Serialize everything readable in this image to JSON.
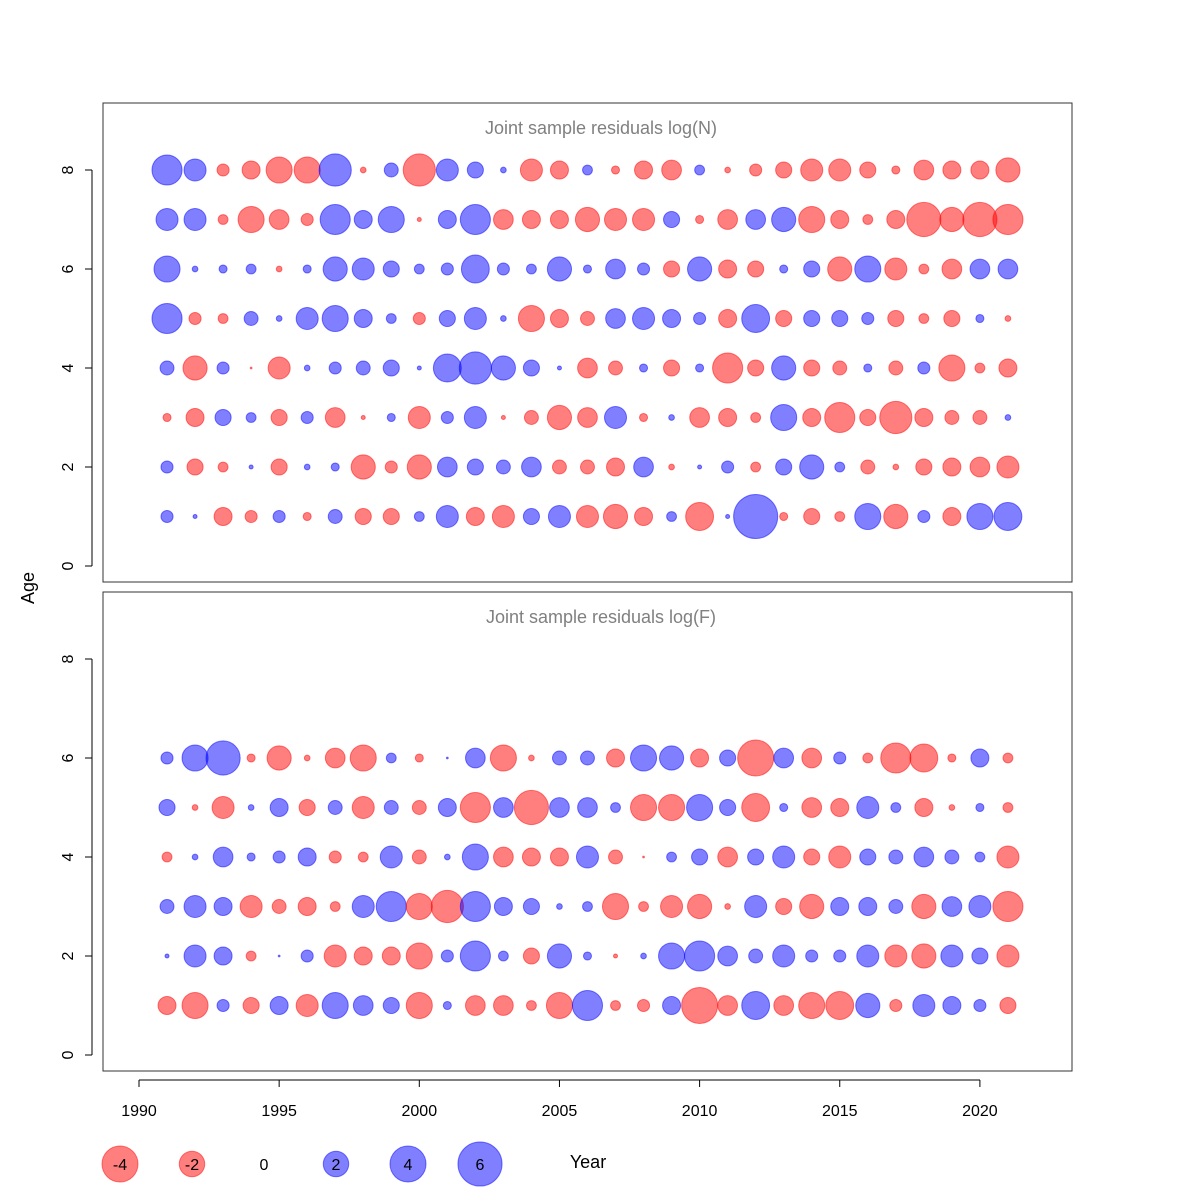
{
  "chart_data": [
    {
      "type": "scatter",
      "subtype": "bubble",
      "title": "Joint sample residuals log(N)",
      "xlabel": "Year",
      "ylabel": "Age",
      "xlim": [
        1989,
        2023
      ],
      "ylim": [
        0,
        9
      ],
      "xticks": [
        1990,
        1995,
        2000,
        2005,
        2010,
        2015,
        2020
      ],
      "yticks": [
        0,
        2,
        4,
        6,
        8
      ],
      "years": [
        1991,
        1992,
        1993,
        1994,
        1995,
        1996,
        1997,
        1998,
        1999,
        2000,
        2001,
        2002,
        2003,
        2004,
        2005,
        2006,
        2007,
        2008,
        2009,
        2010,
        2011,
        2012,
        2013,
        2014,
        2015,
        2016,
        2017,
        2018,
        2019,
        2020,
        2021
      ],
      "ages": [
        1,
        2,
        3,
        4,
        5,
        6,
        7,
        8
      ],
      "residuals": [
        [
          0.45,
          0.05,
          -1.0,
          -0.45,
          0.45,
          -0.2,
          0.6,
          -0.8,
          -0.8,
          0.3,
          1.5,
          -1.0,
          -1.5,
          0.8,
          1.5,
          -1.5,
          -1.8,
          -1.0,
          0.3,
          -2.4,
          0.05,
          6.0,
          -0.2,
          -0.8,
          -0.3,
          2.1,
          -1.8,
          0.45,
          -1.0,
          2.1,
          2.4
        ],
        [
          0.45,
          -0.8,
          -0.3,
          0.05,
          -0.8,
          0.1,
          0.2,
          -1.8,
          -0.45,
          -1.8,
          1.2,
          0.8,
          0.6,
          1.2,
          -0.6,
          -0.6,
          -1.0,
          1.2,
          -0.1,
          0.05,
          0.45,
          -0.3,
          0.8,
          1.8,
          0.3,
          -0.6,
          -0.1,
          -0.8,
          -1.0,
          -1.2,
          -1.5
        ],
        [
          -0.2,
          -1.0,
          0.8,
          0.3,
          -0.8,
          0.45,
          -1.2,
          -0.05,
          0.2,
          -1.5,
          0.45,
          1.5,
          -0.05,
          -0.6,
          -1.8,
          -1.2,
          1.5,
          -0.2,
          0.1,
          -1.2,
          -1.0,
          -0.3,
          2.1,
          -1.0,
          -2.8,
          -0.8,
          -3.2,
          -1.0,
          -0.6,
          -0.6,
          0.1
        ],
        [
          0.6,
          -1.8,
          0.45,
          -0.01,
          -1.5,
          0.1,
          0.45,
          0.6,
          0.8,
          0.05,
          2.4,
          3.2,
          1.8,
          0.8,
          0.05,
          -1.2,
          -0.6,
          0.2,
          -0.8,
          0.2,
          -2.8,
          -0.8,
          1.8,
          -0.8,
          -0.6,
          0.2,
          -0.6,
          0.45,
          -2.1,
          -0.3,
          -1.0
        ],
        [
          2.8,
          -0.45,
          -0.3,
          0.6,
          0.1,
          1.5,
          2.1,
          1.0,
          0.3,
          -0.45,
          0.8,
          1.5,
          0.1,
          -2.1,
          -1.0,
          -0.6,
          1.2,
          1.5,
          1.0,
          0.45,
          -1.0,
          2.4,
          -0.8,
          0.8,
          0.8,
          0.45,
          -0.8,
          -0.3,
          -0.8,
          0.2,
          -0.1
        ],
        [
          2.1,
          0.1,
          0.2,
          0.3,
          -0.1,
          0.2,
          1.8,
          1.5,
          0.8,
          0.3,
          0.45,
          2.4,
          0.45,
          0.3,
          1.8,
          0.2,
          1.2,
          0.45,
          -0.8,
          1.8,
          -1.0,
          -0.8,
          0.2,
          0.8,
          -1.8,
          2.1,
          -1.5,
          -0.3,
          -1.2,
          1.2,
          1.2
        ],
        [
          1.5,
          1.5,
          -0.3,
          -2.1,
          -1.2,
          -0.45,
          2.8,
          1.0,
          2.1,
          -0.05,
          1.0,
          2.8,
          -1.2,
          -1.0,
          -1.0,
          -1.8,
          -1.5,
          -1.5,
          0.8,
          -0.2,
          -1.2,
          1.2,
          1.8,
          -2.1,
          -1.0,
          -0.3,
          -1.0,
          -3.6,
          -1.8,
          -3.6,
          -2.8
        ],
        [
          2.8,
          1.5,
          -0.45,
          -1.0,
          -2.1,
          -2.1,
          3.2,
          -0.1,
          0.6,
          -3.2,
          1.5,
          0.8,
          0.1,
          -1.5,
          -1.0,
          0.3,
          -0.2,
          -1.0,
          -1.2,
          0.3,
          -0.1,
          -0.45,
          -0.8,
          -1.5,
          -1.5,
          -0.8,
          -0.2,
          -1.2,
          -1.0,
          -1.0,
          -1.8
        ]
      ]
    },
    {
      "type": "scatter",
      "subtype": "bubble",
      "title": "Joint sample residuals log(F)",
      "xlabel": "Year",
      "ylabel": "Age",
      "xlim": [
        1989,
        2023
      ],
      "ylim": [
        0,
        9
      ],
      "xticks": [
        1990,
        1995,
        2000,
        2005,
        2010,
        2015,
        2020
      ],
      "yticks": [
        0,
        2,
        4,
        6,
        8
      ],
      "years": [
        1991,
        1992,
        1993,
        1994,
        1995,
        1996,
        1997,
        1998,
        1999,
        2000,
        2001,
        2002,
        2003,
        2004,
        2005,
        2006,
        2007,
        2008,
        2009,
        2010,
        2011,
        2012,
        2013,
        2014,
        2015,
        2016,
        2017,
        2018,
        2019,
        2020,
        2021
      ],
      "ages": [
        1,
        2,
        3,
        4,
        5,
        6
      ],
      "residuals": [
        [
          -1.0,
          -2.1,
          0.45,
          -0.8,
          1.0,
          -1.5,
          2.1,
          1.2,
          0.8,
          -2.1,
          0.2,
          -1.2,
          -1.2,
          -0.3,
          -2.1,
          2.8,
          -0.3,
          -0.45,
          1.0,
          -4.0,
          -1.2,
          2.4,
          -1.2,
          -2.1,
          -2.4,
          1.8,
          -0.45,
          1.5,
          1.0,
          0.45,
          -0.8
        ],
        [
          0.05,
          1.5,
          1.0,
          -0.3,
          0.01,
          0.45,
          -1.5,
          -1.0,
          -1.0,
          -2.1,
          0.45,
          2.8,
          0.3,
          -0.8,
          1.8,
          0.2,
          -0.05,
          0.1,
          2.1,
          2.8,
          1.2,
          0.6,
          1.5,
          0.45,
          0.45,
          1.5,
          -1.5,
          -1.8,
          1.5,
          0.8,
          -1.5
        ],
        [
          0.6,
          1.5,
          1.0,
          -1.5,
          -0.6,
          -1.0,
          -0.3,
          1.5,
          2.8,
          -2.1,
          -3.2,
          2.8,
          1.0,
          0.8,
          0.1,
          0.3,
          -2.1,
          -0.3,
          -1.5,
          -1.8,
          -0.1,
          1.5,
          -0.8,
          -1.8,
          1.0,
          1.0,
          0.6,
          -1.8,
          1.2,
          1.5,
          -2.8
        ],
        [
          -0.3,
          0.1,
          1.2,
          0.2,
          0.45,
          1.0,
          -0.45,
          -0.3,
          1.5,
          -0.6,
          0.1,
          2.1,
          -1.2,
          -1.0,
          -1.0,
          1.5,
          -0.6,
          -0.01,
          0.3,
          0.8,
          -1.2,
          0.8,
          1.5,
          -0.8,
          -1.5,
          0.8,
          0.6,
          1.2,
          0.6,
          0.3,
          -1.5
        ],
        [
          0.8,
          -0.1,
          -1.5,
          0.1,
          1.0,
          -0.8,
          0.6,
          -1.5,
          0.6,
          -0.6,
          1.0,
          -2.8,
          1.2,
          -3.6,
          1.2,
          1.2,
          0.3,
          -2.1,
          -2.1,
          2.1,
          0.8,
          -2.4,
          0.2,
          -1.2,
          -1.0,
          1.5,
          0.3,
          -1.0,
          -0.1,
          0.2,
          -0.3
        ],
        [
          0.45,
          2.1,
          3.6,
          -0.2,
          -1.8,
          -0.1,
          -1.2,
          -2.1,
          0.3,
          -0.2,
          0.01,
          1.2,
          -2.1,
          -0.1,
          0.6,
          0.6,
          -1.0,
          2.1,
          1.8,
          -1.0,
          0.8,
          -4.0,
          1.2,
          -1.2,
          0.45,
          -0.3,
          -2.8,
          -2.4,
          -0.2,
          1.0,
          -0.3
        ]
      ]
    }
  ],
  "axis": {
    "ylabel": "Age",
    "xlabel": "Year",
    "xtick_labels": [
      "1990",
      "1995",
      "2000",
      "2005",
      "2010",
      "2015",
      "2020"
    ],
    "ytick_labels": [
      "0",
      "2",
      "4",
      "6",
      "8"
    ]
  },
  "legend": {
    "entries": [
      {
        "value": -4,
        "label": "-4"
      },
      {
        "value": -2,
        "label": "-2"
      },
      {
        "value": 0,
        "label": "0"
      },
      {
        "value": 2,
        "label": "2"
      },
      {
        "value": 4,
        "label": "4"
      },
      {
        "value": 6,
        "label": "6"
      }
    ],
    "title": "Year"
  },
  "colors": {
    "negative": "#ff0000",
    "positive": "#0000ff",
    "title": "#808080"
  }
}
